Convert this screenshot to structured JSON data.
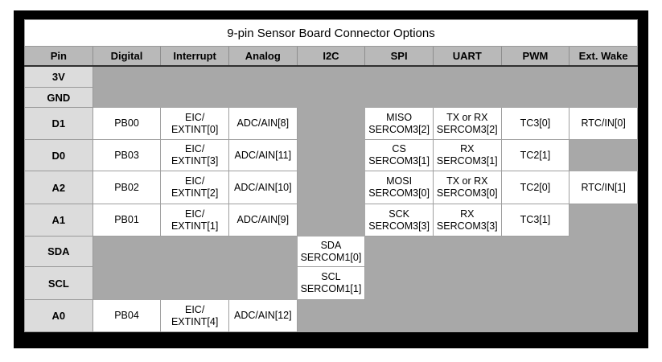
{
  "title": "9-pin Sensor Board Connector Options",
  "columns": [
    "Pin",
    "Digital",
    "Interrupt",
    "Analog",
    "I2C",
    "SPI",
    "UART",
    "PWM",
    "Ext. Wake"
  ],
  "rows": [
    {
      "pin": "3V",
      "cells": [
        "",
        "",
        "",
        "",
        "",
        "",
        "",
        ""
      ]
    },
    {
      "pin": "GND",
      "cells": [
        "",
        "",
        "",
        "",
        "",
        "",
        "",
        ""
      ]
    },
    {
      "pin": "D1",
      "cells": [
        "PB00",
        "EIC/\nEXTINT[0]",
        "ADC/AIN[8]",
        "",
        "MISO\nSERCOM3[2]",
        "TX or RX\nSERCOM3[2]",
        "TC3[0]",
        "RTC/IN[0]"
      ]
    },
    {
      "pin": "D0",
      "cells": [
        "PB03",
        "EIC/\nEXTINT[3]",
        "ADC/AIN[11]",
        "",
        "CS\nSERCOM3[1]",
        "RX\nSERCOM3[1]",
        "TC2[1]",
        ""
      ]
    },
    {
      "pin": "A2",
      "cells": [
        "PB02",
        "EIC/\nEXTINT[2]",
        "ADC/AIN[10]",
        "",
        "MOSI\nSERCOM3[0]",
        "TX or RX\nSERCOM3[0]",
        "TC2[0]",
        "RTC/IN[1]"
      ]
    },
    {
      "pin": "A1",
      "cells": [
        "PB01",
        "EIC/\nEXTINT[1]",
        "ADC/AIN[9]",
        "",
        "SCK\nSERCOM3[3]",
        "RX\nSERCOM3[3]",
        "TC3[1]",
        ""
      ]
    },
    {
      "pin": "SDA",
      "cells": [
        "",
        "",
        "",
        "SDA\nSERCOM1[0]",
        "",
        "",
        "",
        ""
      ]
    },
    {
      "pin": "SCL",
      "cells": [
        "",
        "",
        "",
        "SCL\nSERCOM1[1]",
        "",
        "",
        "",
        ""
      ]
    },
    {
      "pin": "A0",
      "cells": [
        "PB04",
        "EIC/\nEXTINT[4]",
        "ADC/AIN[12]",
        "",
        "",
        "",
        "",
        ""
      ]
    }
  ],
  "colors": {
    "page_bg": "#ffffff",
    "frame_bg": "#000000",
    "title_bg": "#ffffff",
    "header_bg": "#b9b9b9",
    "pin_column_bg": "#dcdcdc",
    "data_cell_bg": "#ffffff",
    "empty_cell_bg": "#a8a8a8",
    "grid_line": "#9a9a9a",
    "header_underline": "#2f2f2f",
    "text": "#000000"
  }
}
